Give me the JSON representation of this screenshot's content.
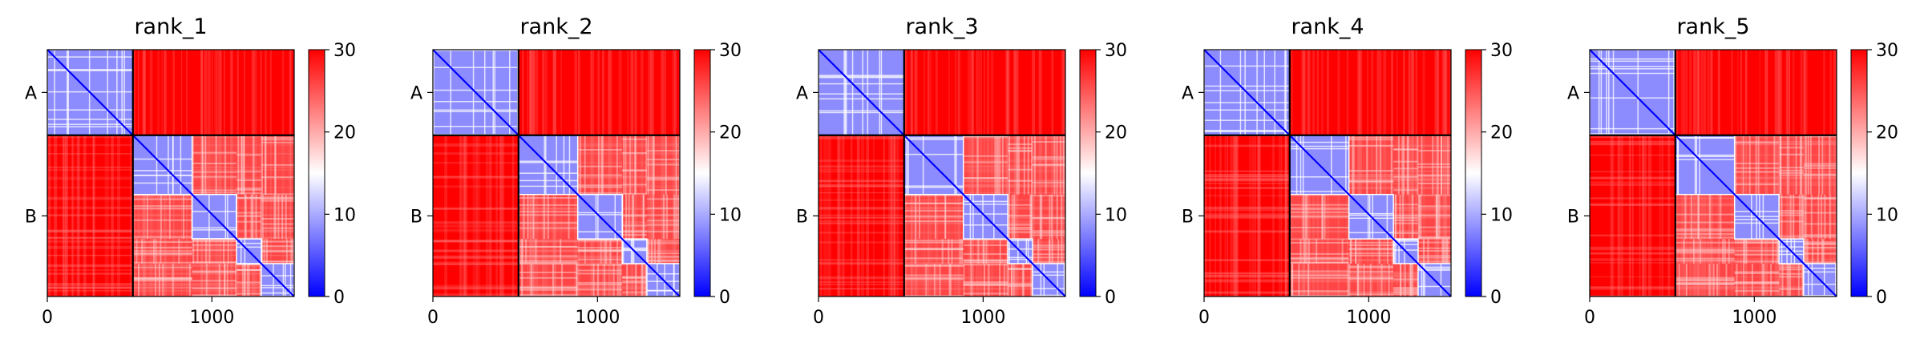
{
  "chart_data": [
    {
      "type": "heatmap",
      "title": "rank_1",
      "x_ticks": [
        0,
        1000
      ],
      "xlim": [
        0,
        1500
      ],
      "chain_boundary": 520,
      "chain_labels": [
        "A",
        "B"
      ],
      "colorbar": {
        "ticks": [
          0,
          10,
          20,
          30
        ],
        "range": [
          0,
          30
        ],
        "colors": [
          "#0000ff",
          "#ffffff",
          "#ff0000"
        ]
      },
      "diagonal_blocks": [
        [
          0,
          520
        ],
        [
          520,
          880
        ],
        [
          880,
          1150
        ],
        [
          1150,
          1300
        ],
        [
          1300,
          1500
        ]
      ]
    },
    {
      "type": "heatmap",
      "title": "rank_2",
      "x_ticks": [
        0,
        1000
      ],
      "xlim": [
        0,
        1500
      ],
      "chain_boundary": 520,
      "chain_labels": [
        "A",
        "B"
      ],
      "colorbar": {
        "ticks": [
          0,
          10,
          20,
          30
        ],
        "range": [
          0,
          30
        ],
        "colors": [
          "#0000ff",
          "#ffffff",
          "#ff0000"
        ]
      },
      "diagonal_blocks": [
        [
          0,
          520
        ],
        [
          520,
          880
        ],
        [
          880,
          1150
        ],
        [
          1150,
          1300
        ],
        [
          1300,
          1500
        ]
      ]
    },
    {
      "type": "heatmap",
      "title": "rank_3",
      "x_ticks": [
        0,
        1000
      ],
      "xlim": [
        0,
        1500
      ],
      "chain_boundary": 520,
      "chain_labels": [
        "A",
        "B"
      ],
      "colorbar": {
        "ticks": [
          0,
          10,
          20,
          30
        ],
        "range": [
          0,
          30
        ],
        "colors": [
          "#0000ff",
          "#ffffff",
          "#ff0000"
        ]
      },
      "diagonal_blocks": [
        [
          0,
          520
        ],
        [
          520,
          880
        ],
        [
          880,
          1150
        ],
        [
          1150,
          1300
        ],
        [
          1300,
          1500
        ]
      ]
    },
    {
      "type": "heatmap",
      "title": "rank_4",
      "x_ticks": [
        0,
        1000
      ],
      "xlim": [
        0,
        1500
      ],
      "chain_boundary": 520,
      "chain_labels": [
        "A",
        "B"
      ],
      "colorbar": {
        "ticks": [
          0,
          10,
          20,
          30
        ],
        "range": [
          0,
          30
        ],
        "colors": [
          "#0000ff",
          "#ffffff",
          "#ff0000"
        ]
      },
      "diagonal_blocks": [
        [
          0,
          520
        ],
        [
          520,
          880
        ],
        [
          880,
          1150
        ],
        [
          1150,
          1300
        ],
        [
          1300,
          1500
        ]
      ]
    },
    {
      "type": "heatmap",
      "title": "rank_5",
      "x_ticks": [
        0,
        1000
      ],
      "xlim": [
        0,
        1500
      ],
      "chain_boundary": 520,
      "chain_labels": [
        "A",
        "B"
      ],
      "colorbar": {
        "ticks": [
          0,
          10,
          20,
          30
        ],
        "range": [
          0,
          30
        ],
        "colors": [
          "#0000ff",
          "#ffffff",
          "#ff0000"
        ]
      },
      "diagonal_blocks": [
        [
          0,
          520
        ],
        [
          520,
          880
        ],
        [
          880,
          1150
        ],
        [
          1150,
          1300
        ],
        [
          1300,
          1500
        ]
      ]
    }
  ]
}
